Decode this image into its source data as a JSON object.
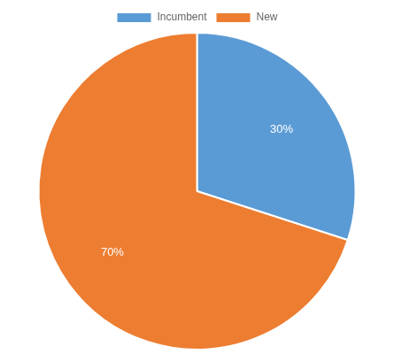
{
  "chart_data": {
    "type": "pie",
    "categories": [
      "Incumbent",
      "New"
    ],
    "values": [
      30,
      70
    ],
    "value_labels": [
      "30%",
      "70%"
    ],
    "colors": [
      "#5b9bd5",
      "#ed7d31"
    ],
    "legend": "top",
    "data_labels": true
  }
}
